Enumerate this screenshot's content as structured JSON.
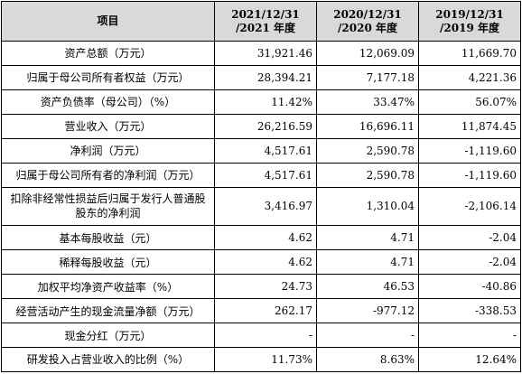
{
  "table": {
    "header": {
      "item": "项目",
      "periods": [
        {
          "line1": "2021/12/31",
          "line2": "/2021 年度"
        },
        {
          "line1": "2020/12/31",
          "line2": "/2020 年度"
        },
        {
          "line1": "2019/12/31",
          "line2": "/2019 年度"
        }
      ]
    },
    "rows": [
      {
        "label": "资产总额（万元）",
        "values": [
          "31,921.46",
          "12,069.09",
          "11,669.70"
        ]
      },
      {
        "label": "归属于母公司所有者权益（万元）",
        "values": [
          "28,394.21",
          "7,177.18",
          "4,221.36"
        ]
      },
      {
        "label": "资产负债率（母公司）（%）",
        "values": [
          "11.42%",
          "33.47%",
          "56.07%"
        ]
      },
      {
        "label": "营业收入（万元）",
        "values": [
          "26,216.59",
          "16,696.11",
          "11,874.45"
        ]
      },
      {
        "label": "净利润（万元）",
        "values": [
          "4,517.61",
          "2,590.78",
          "-1,119.60"
        ]
      },
      {
        "label": "归属于母公司所有者的净利润（万元）",
        "values": [
          "4,517.61",
          "2,590.78",
          "-1,119.60"
        ]
      },
      {
        "label": "扣除非经常性损益后归属于发行人普通股股东的净利润",
        "values": [
          "3,416.97",
          "1,310.04",
          "-2,106.14"
        ]
      },
      {
        "label": "基本每股收益（元）",
        "values": [
          "4.62",
          "4.71",
          "-2.04"
        ]
      },
      {
        "label": "稀释每股收益（元）",
        "values": [
          "4.62",
          "4.71",
          "-2.04"
        ]
      },
      {
        "label": "加权平均净资产收益率（%）",
        "values": [
          "24.73",
          "46.53",
          "-40.86"
        ]
      },
      {
        "label": "经营活动产生的现金流量净额（万元）",
        "values": [
          "262.17",
          "-977.12",
          "-338.53"
        ]
      },
      {
        "label": "现金分红（万元）",
        "values": [
          "-",
          "-",
          "-"
        ]
      },
      {
        "label": "研发投入占营业收入的比例（%）",
        "values": [
          "11.73%",
          "8.63%",
          "12.64%"
        ]
      }
    ]
  }
}
